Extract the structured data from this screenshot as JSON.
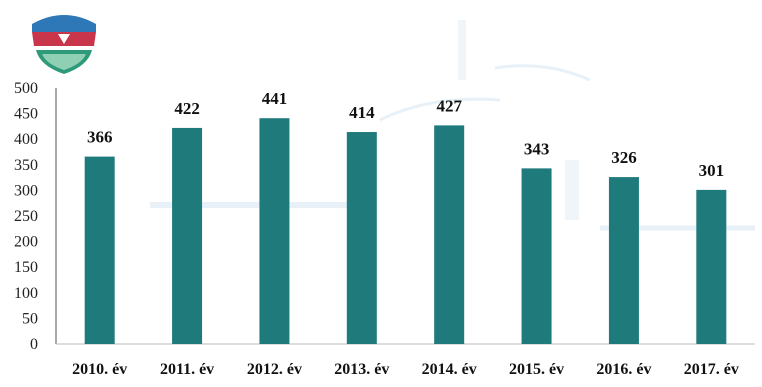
{
  "colors": {
    "bar": "#1f7a7c",
    "background": "#ffffff",
    "faint_watermark": "#cfe3ef"
  },
  "emblem_icon": "emblem-crest",
  "chart_data": {
    "type": "bar",
    "categories": [
      "2010. év",
      "2011. év",
      "2012. év",
      "2013. év",
      "2014. év",
      "2015. év",
      "2016. év",
      "2017. év"
    ],
    "values": [
      366,
      422,
      441,
      414,
      427,
      343,
      326,
      301
    ],
    "data_labels": [
      "366",
      "422",
      "441",
      "414",
      "427",
      "343",
      "326",
      "301"
    ],
    "y_ticks": [
      0,
      50,
      100,
      150,
      200,
      250,
      300,
      350,
      400,
      450,
      500
    ],
    "y_tick_labels": [
      "0",
      "50",
      "100",
      "150",
      "200",
      "250",
      "300",
      "350",
      "400",
      "450",
      "500"
    ],
    "ylim": [
      0,
      500
    ],
    "title": "",
    "xlabel": "",
    "ylabel": "",
    "grid": false,
    "legend": "none"
  }
}
